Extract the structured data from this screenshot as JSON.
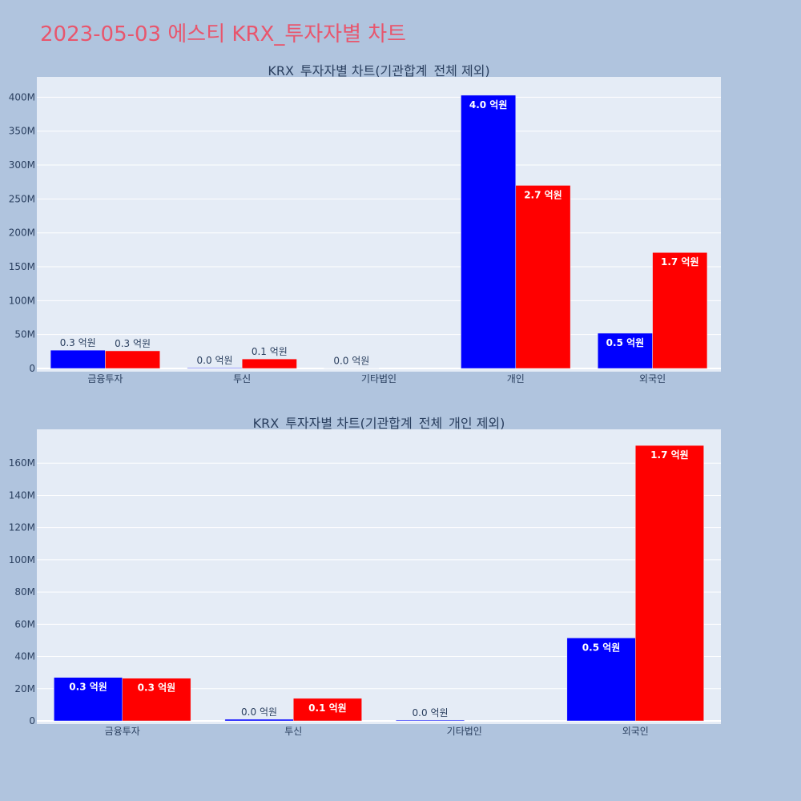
{
  "page_title": "2023-05-03 에스티 KRX_투자자별 차트",
  "colors": {
    "buy": "#0000ff",
    "sell": "#ff0000",
    "plot_bg": "#e5ecf6",
    "page_bg": "#b0c4de",
    "title": "#e8566d"
  },
  "chart_data": [
    {
      "type": "bar",
      "title": "KRX_투자자별 차트(기관합계_전체 제외)",
      "categories": [
        "금융투자",
        "투신",
        "기타법인",
        "개인",
        "외국인"
      ],
      "series": [
        {
          "values": [
            27000000,
            1000000,
            500000,
            403000000,
            52000000
          ],
          "labels": [
            "0.3 억원",
            "0.0 억원",
            "0.0 억원",
            "4.0 억원",
            "0.5 억원"
          ]
        },
        {
          "values": [
            26000000,
            14000000,
            0,
            270000000,
            171000000
          ],
          "labels": [
            "0.3 억원",
            "0.1 억원",
            "",
            "2.7 억원",
            "1.7 억원"
          ]
        }
      ],
      "ylim": [
        0,
        430000000
      ],
      "yticks": [
        0,
        50000000,
        100000000,
        150000000,
        200000000,
        250000000,
        300000000,
        350000000,
        400000000
      ],
      "ytick_labels": [
        "0",
        "50M",
        "100M",
        "150M",
        "200M",
        "250M",
        "300M",
        "350M",
        "400M"
      ],
      "grid": true,
      "legend": "none"
    },
    {
      "type": "bar",
      "title": "KRX_투자자별 차트(기관합계_전체_개인 제외)",
      "categories": [
        "금융투자",
        "투신",
        "기타법인",
        "외국인"
      ],
      "series": [
        {
          "values": [
            27000000,
            1000000,
            500000,
            51500000
          ],
          "labels": [
            "0.3 억원",
            "0.0 억원",
            "0.0 억원",
            "0.5 억원"
          ]
        },
        {
          "values": [
            26500000,
            14000000,
            0,
            171000000
          ],
          "labels": [
            "0.3 억원",
            "0.1 억원",
            "",
            "1.7 억원"
          ]
        }
      ],
      "ylim": [
        0,
        181000000
      ],
      "yticks": [
        0,
        20000000,
        40000000,
        60000000,
        80000000,
        100000000,
        120000000,
        140000000,
        160000000
      ],
      "ytick_labels": [
        "0",
        "20M",
        "40M",
        "60M",
        "80M",
        "100M",
        "120M",
        "140M",
        "160M"
      ],
      "grid": true,
      "legend": "none"
    }
  ]
}
